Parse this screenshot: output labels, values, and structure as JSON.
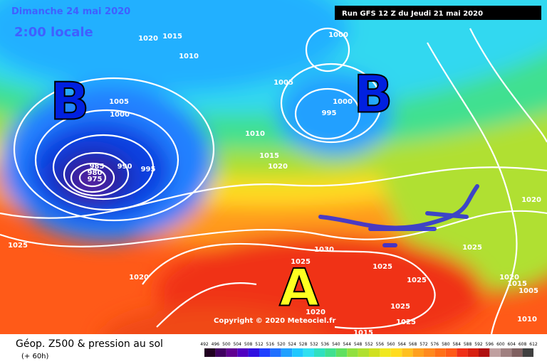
{
  "header": {
    "valid_date": "Dimanche 24 mai 2020",
    "local_time": "2:00 locale",
    "run": "Run GFS 12 Z du Jeudi 21 mai 2020"
  },
  "pressure_systems": [
    {
      "label": "B"
    },
    {
      "label": "B"
    },
    {
      "label": "A"
    }
  ],
  "isobar_labels": [
    "1020",
    "1015",
    "1010",
    "1005",
    "1000",
    "985",
    "980",
    "975",
    "990",
    "995",
    "1010",
    "1005",
    "1000",
    "995",
    "1000",
    "1015",
    "1020",
    "1020",
    "1025",
    "1020",
    "1030",
    "1025",
    "1025",
    "1025",
    "1025",
    "1025",
    "1025",
    "1020",
    "1015",
    "1020",
    "1015",
    "1005",
    "1010"
  ],
  "copyright": "Copyright © 2020 Meteociel.fr",
  "footer": {
    "title": "Géop. Z500 & pression au sol",
    "lead": "(+ 60h)",
    "scale": [
      "492",
      "496",
      "500",
      "504",
      "508",
      "512",
      "516",
      "520",
      "524",
      "528",
      "532",
      "536",
      "540",
      "544",
      "548",
      "552",
      "556",
      "560",
      "564",
      "568",
      "572",
      "576",
      "580",
      "584",
      "588",
      "592",
      "596",
      "600",
      "604",
      "608",
      "612"
    ]
  }
}
